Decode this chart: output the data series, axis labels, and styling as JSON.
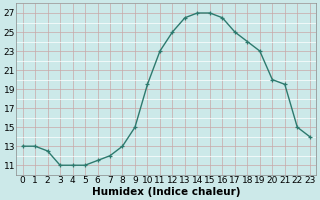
{
  "x": [
    0,
    1,
    2,
    3,
    4,
    5,
    6,
    7,
    8,
    9,
    10,
    11,
    12,
    13,
    14,
    15,
    16,
    17,
    18,
    19,
    20,
    21,
    22,
    23
  ],
  "y": [
    13,
    13,
    12.5,
    11,
    11,
    11,
    11.5,
    12,
    13,
    15,
    19.5,
    23,
    25,
    26.5,
    27,
    27,
    26.5,
    25,
    24,
    23,
    20,
    19.5,
    15,
    14
  ],
  "line_color": "#2d7a6e",
  "marker": "+",
  "bg_color": "#cce9e9",
  "grid_color_major": "#c8a8a8",
  "grid_color_minor": "#ffffff",
  "xlabel": "Humidex (Indice chaleur)",
  "xlim": [
    -0.5,
    23.5
  ],
  "ylim": [
    10.0,
    28.0
  ],
  "yticks": [
    11,
    13,
    15,
    17,
    19,
    21,
    23,
    25,
    27
  ],
  "xtick_labels": [
    "0",
    "1",
    "2",
    "3",
    "4",
    "5",
    "6",
    "7",
    "8",
    "9",
    "10",
    "11",
    "12",
    "13",
    "14",
    "15",
    "16",
    "17",
    "18",
    "19",
    "20",
    "21",
    "22",
    "23"
  ],
  "tick_fontsize": 6.5,
  "xlabel_fontsize": 7.5,
  "linewidth": 1.0,
  "markersize": 3.5,
  "markeredgewidth": 0.9
}
